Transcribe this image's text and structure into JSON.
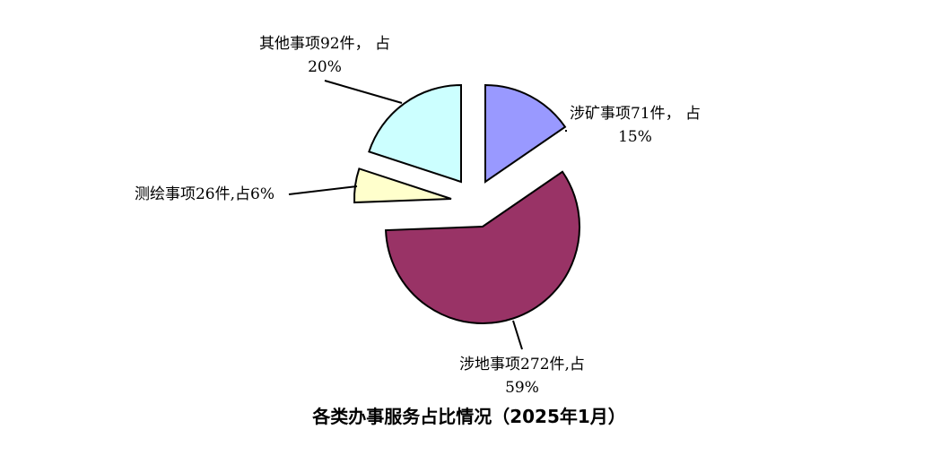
{
  "chart_data": {
    "type": "pie",
    "title": "各类办事服务占比情况（2025年1月）",
    "exploded": true,
    "slices": [
      {
        "name": "涉矿事项",
        "value": 71,
        "percent": 15,
        "color": "#9999FF",
        "label_lines": [
          "涉矿事项71件， 占",
          "15%"
        ]
      },
      {
        "name": "涉地事项",
        "value": 272,
        "percent": 59,
        "color": "#993366",
        "label_lines": [
          "涉地事项272件,占",
          "59%"
        ]
      },
      {
        "name": "测绘事项",
        "value": 26,
        "percent": 6,
        "color": "#FFFFCC",
        "label_lines": [
          "测绘事项26件,占6%"
        ]
      },
      {
        "name": "其他事项",
        "value": 92,
        "percent": 20,
        "color": "#CCFFFF",
        "label_lines": [
          "其他事项92件， 占",
          "20%"
        ]
      }
    ]
  }
}
